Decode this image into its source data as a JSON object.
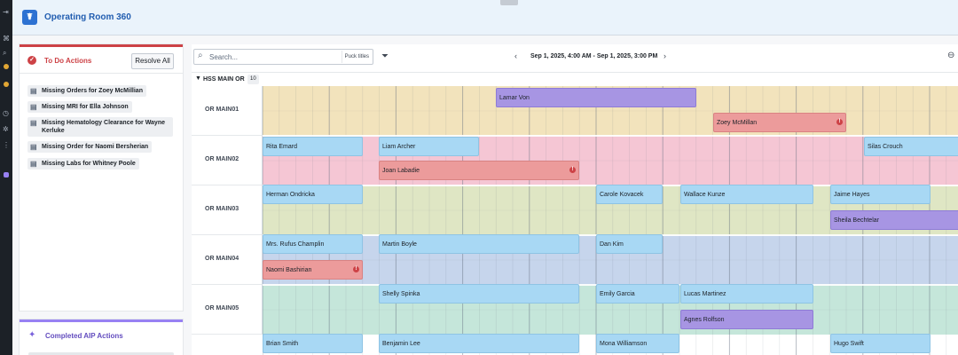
{
  "app": {
    "title": "Operating Room 360",
    "logo_icon": "stethoscope-icon"
  },
  "todo": {
    "title": "To Do Actions",
    "resolve_label": "Resolve All",
    "items": [
      "Missing Orders for Zoey McMillian",
      "Missing MRI for Ella Johnson",
      "Missing Hematology Clearance for Wayne Kerluke",
      "Missing Order for Naomi Bersherian",
      "Missing Labs for Whitney Poole"
    ]
  },
  "aip": {
    "title": "Completed AIP Actions"
  },
  "toolbar": {
    "search_placeholder": "Search...",
    "puck_titles_label": "Puck titles",
    "date_range": "Sep 1, 2025, 4:00 AM - Sep 1, 2025, 3:00 PM"
  },
  "group": {
    "name": "HSS MAIN OR",
    "count": "10"
  },
  "colors": {
    "blue": "#a8d8f4",
    "purple": "#a795e3",
    "red": "#ec9b9b"
  },
  "rooms": [
    {
      "name": "OR MAIN01",
      "lane_color": "#f2e3bc",
      "events": [
        {
          "label": "Lamar Von",
          "color": "purple"
        },
        {
          "label": "Zoey McMillan",
          "color": "red",
          "alert": true
        },
        {
          "label": "Rita Emard",
          "color": "blue"
        },
        {
          "label": "Liam Archer",
          "color": "blue"
        },
        {
          "label": "Silas Crouch",
          "color": "blue"
        }
      ]
    },
    {
      "name": "OR MAIN02",
      "lane_color": "#f5c6d4",
      "events": [
        {
          "label": "Joan Labadie",
          "color": "red",
          "alert": true
        },
        {
          "label": "Herman Ondricka",
          "color": "blue"
        },
        {
          "label": "Carole Kovacek",
          "color": "blue"
        },
        {
          "label": "Wallace Kunze",
          "color": "blue"
        },
        {
          "label": "Jaime Hayes",
          "color": "blue"
        }
      ]
    },
    {
      "name": "OR MAIN03",
      "lane_color": "#dfe6c4",
      "events": [
        {
          "label": "Sheila Bechtelar",
          "color": "purple"
        },
        {
          "label": "Mrs. Rufus Champlin",
          "color": "blue"
        },
        {
          "label": "Martin Boyle",
          "color": "blue"
        },
        {
          "label": "Dan Kim",
          "color": "blue"
        }
      ]
    },
    {
      "name": "OR MAIN04",
      "lane_color": "#c6d5ec",
      "events": [
        {
          "label": "Naomi Bashirian",
          "color": "red",
          "alert": true
        },
        {
          "label": "Shelly Spinka",
          "color": "blue"
        },
        {
          "label": "Emily Garcia",
          "color": "blue"
        },
        {
          "label": "Lucas Martinez",
          "color": "blue"
        }
      ]
    },
    {
      "name": "OR MAIN05",
      "lane_color": "#c5e6da",
      "events": [
        {
          "label": "Agnes Rolfson",
          "color": "purple"
        },
        {
          "label": "Brian Smith",
          "color": "blue"
        },
        {
          "label": "Benjamin Lee",
          "color": "blue"
        },
        {
          "label": "Mona Williamson",
          "color": "blue"
        },
        {
          "label": "Hugo Swift",
          "color": "blue"
        }
      ]
    }
  ]
}
